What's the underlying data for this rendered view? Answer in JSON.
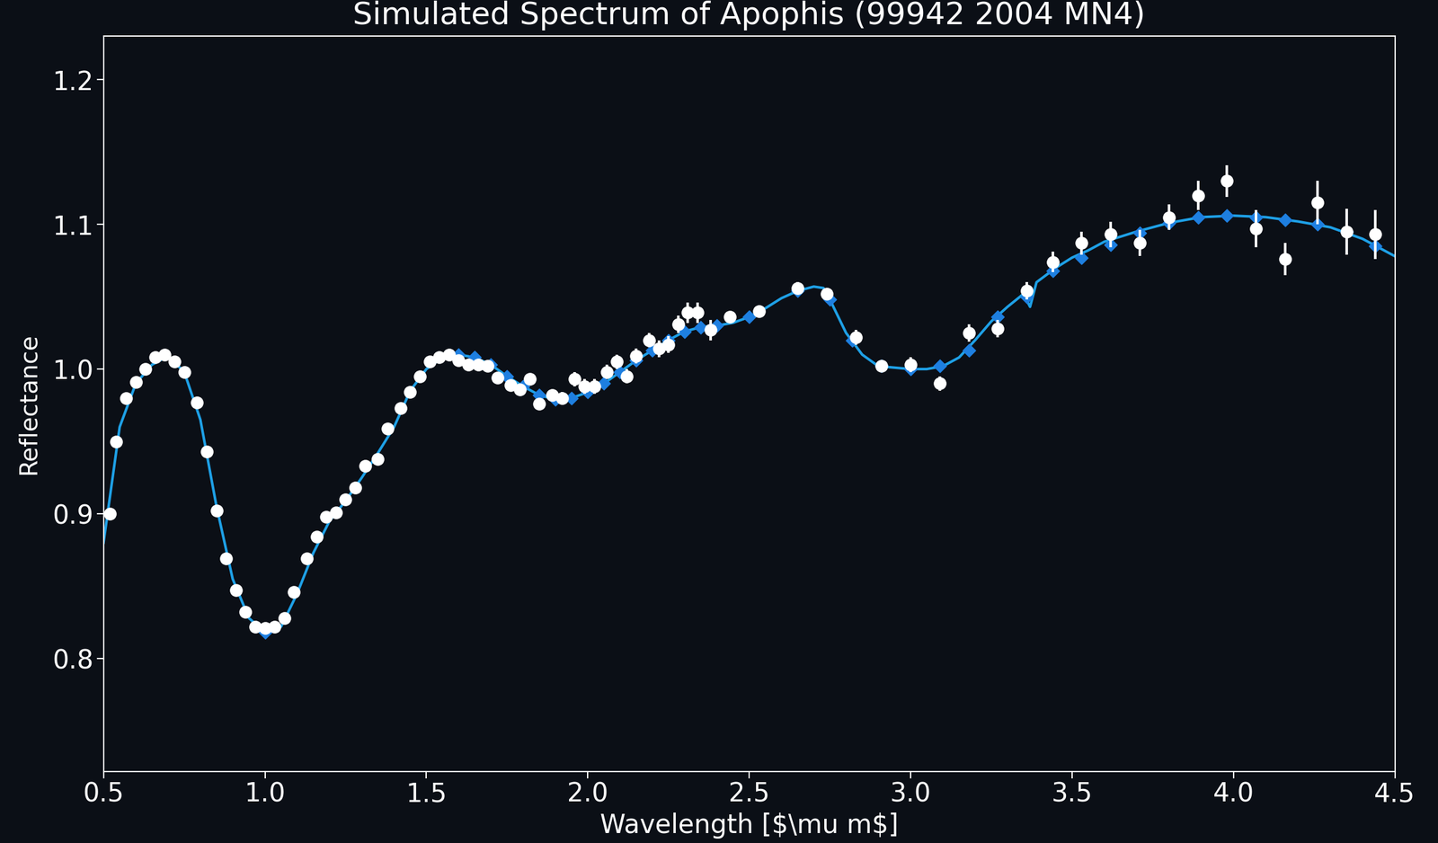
{
  "chart_data": {
    "type": "line",
    "title": "Simulated Spectrum of Apophis (99942 2004 MN4)",
    "x_label": "Wavelength [$\\mu m$]",
    "y_label": "Reflectance",
    "xlim": [
      0.5,
      4.5
    ],
    "ylim": [
      0.722,
      1.23
    ],
    "xticks": [
      0.5,
      1.0,
      1.5,
      2.0,
      2.5,
      3.0,
      3.5,
      4.0,
      4.5
    ],
    "yticks": [
      0.8,
      0.9,
      1.0,
      1.1,
      1.2
    ],
    "grid": false,
    "series": [
      {
        "type": "line",
        "color": "#1ea0e6",
        "line_style": "solid",
        "x": [
          0.5,
          0.55,
          0.6,
          0.65,
          0.7,
          0.75,
          0.8,
          0.85,
          0.9,
          0.95,
          1.0,
          1.05,
          1.1,
          1.15,
          1.2,
          1.25,
          1.3,
          1.35,
          1.4,
          1.45,
          1.5,
          1.55,
          1.6,
          1.65,
          1.7,
          1.75,
          1.8,
          1.85,
          1.9,
          1.95,
          2.0,
          2.05,
          2.1,
          2.15,
          2.2,
          2.25,
          2.3,
          2.35,
          2.4,
          2.45,
          2.5,
          2.55,
          2.6,
          2.65,
          2.7,
          2.73,
          2.75,
          2.8,
          2.85,
          2.9,
          3.0,
          3.05,
          3.1,
          3.15,
          3.2,
          3.25,
          3.3,
          3.35,
          3.37,
          3.39,
          3.45,
          3.5,
          3.55,
          3.6,
          3.7,
          3.8,
          3.9,
          4.0,
          4.1,
          4.2,
          4.3,
          4.4,
          4.5
        ],
        "values": [
          0.88,
          0.96,
          0.99,
          1.003,
          1.009,
          0.998,
          0.965,
          0.905,
          0.855,
          0.828,
          0.818,
          0.822,
          0.845,
          0.873,
          0.895,
          0.909,
          0.925,
          0.942,
          0.96,
          0.985,
          1.0,
          1.008,
          1.01,
          1.008,
          1.003,
          0.995,
          0.988,
          0.982,
          0.979,
          0.98,
          0.984,
          0.99,
          0.998,
          1.006,
          1.013,
          1.02,
          1.026,
          1.029,
          1.03,
          1.032,
          1.036,
          1.042,
          1.049,
          1.054,
          1.057,
          1.056,
          1.048,
          1.025,
          1.01,
          1.002,
          1.0,
          1.0,
          1.002,
          1.008,
          1.02,
          1.033,
          1.043,
          1.052,
          1.043,
          1.06,
          1.07,
          1.077,
          1.082,
          1.088,
          1.095,
          1.101,
          1.105,
          1.106,
          1.105,
          1.102,
          1.098,
          1.09,
          1.078
        ]
      },
      {
        "type": "scatter",
        "color": "#1e7fe0",
        "marker": "diamond",
        "x": [
          1.0,
          1.6,
          1.65,
          1.7,
          1.75,
          1.8,
          1.85,
          1.9,
          1.95,
          2.0,
          2.05,
          2.1,
          2.15,
          2.2,
          2.25,
          2.3,
          2.35,
          2.4,
          2.5,
          2.65,
          2.75,
          2.82,
          2.91,
          3.0,
          3.09,
          3.18,
          3.27,
          3.36,
          3.44,
          3.53,
          3.62,
          3.71,
          3.8,
          3.89,
          3.98,
          4.07,
          4.16,
          4.26,
          4.35,
          4.44
        ],
        "values": [
          0.818,
          1.01,
          1.008,
          1.003,
          0.995,
          0.988,
          0.982,
          0.979,
          0.98,
          0.984,
          0.99,
          0.998,
          1.006,
          1.013,
          1.02,
          1.026,
          1.029,
          1.03,
          1.036,
          1.054,
          1.048,
          1.02,
          1.002,
          1.0,
          1.002,
          1.013,
          1.036,
          1.05,
          1.068,
          1.077,
          1.086,
          1.094,
          1.101,
          1.105,
          1.106,
          1.105,
          1.103,
          1.1,
          1.095,
          1.085
        ]
      },
      {
        "type": "errorbar",
        "color": "#ffffff",
        "marker": "circle",
        "x": [
          0.52,
          0.54,
          0.57,
          0.6,
          0.63,
          0.66,
          0.69,
          0.72,
          0.75,
          0.79,
          0.82,
          0.85,
          0.88,
          0.91,
          0.94,
          0.97,
          1.0,
          1.03,
          1.06,
          1.09,
          1.13,
          1.16,
          1.19,
          1.22,
          1.25,
          1.28,
          1.31,
          1.35,
          1.38,
          1.42,
          1.45,
          1.48,
          1.51,
          1.54,
          1.57,
          1.6,
          1.63,
          1.66,
          1.69,
          1.72,
          1.76,
          1.79,
          1.82,
          1.85,
          1.89,
          1.92,
          1.96,
          1.99,
          2.02,
          2.06,
          2.09,
          2.12,
          2.15,
          2.19,
          2.22,
          2.25,
          2.28,
          2.31,
          2.34,
          2.38,
          2.44,
          2.53,
          2.65,
          2.74,
          2.83,
          2.91,
          3.0,
          3.09,
          3.18,
          3.27,
          3.36,
          3.44,
          3.53,
          3.62,
          3.71,
          3.8,
          3.89,
          3.98,
          4.07,
          4.16,
          4.26,
          4.35,
          4.44
        ],
        "values": [
          0.9,
          0.95,
          0.98,
          0.991,
          1.0,
          1.008,
          1.01,
          1.005,
          0.998,
          0.977,
          0.943,
          0.902,
          0.869,
          0.847,
          0.832,
          0.822,
          0.821,
          0.822,
          0.828,
          0.846,
          0.869,
          0.884,
          0.898,
          0.901,
          0.91,
          0.918,
          0.933,
          0.938,
          0.959,
          0.973,
          0.984,
          0.995,
          1.005,
          1.008,
          1.01,
          1.006,
          1.003,
          1.003,
          1.002,
          0.994,
          0.989,
          0.986,
          0.993,
          0.976,
          0.982,
          0.98,
          0.993,
          0.988,
          0.988,
          0.998,
          1.005,
          0.995,
          1.009,
          1.02,
          1.014,
          1.017,
          1.031,
          1.039,
          1.039,
          1.027,
          1.036,
          1.04,
          1.056,
          1.052,
          1.022,
          1.002,
          1.003,
          0.99,
          1.025,
          1.028,
          1.054,
          1.074,
          1.087,
          1.093,
          1.087,
          1.105,
          1.12,
          1.13,
          1.097,
          1.076,
          1.115,
          1.095,
          1.093
        ],
        "errors": [
          0.002,
          0.002,
          0.002,
          0.002,
          0.002,
          0.002,
          0.002,
          0.002,
          0.002,
          0.002,
          0.002,
          0.002,
          0.002,
          0.002,
          0.002,
          0.002,
          0.002,
          0.002,
          0.002,
          0.002,
          0.002,
          0.002,
          0.002,
          0.002,
          0.002,
          0.002,
          0.002,
          0.002,
          0.002,
          0.002,
          0.002,
          0.002,
          0.002,
          0.002,
          0.002,
          0.002,
          0.002,
          0.002,
          0.002,
          0.002,
          0.003,
          0.003,
          0.003,
          0.004,
          0.004,
          0.004,
          0.005,
          0.005,
          0.005,
          0.005,
          0.005,
          0.005,
          0.005,
          0.005,
          0.006,
          0.006,
          0.006,
          0.007,
          0.007,
          0.007,
          0.004,
          0.004,
          0.004,
          0.004,
          0.005,
          0.004,
          0.005,
          0.005,
          0.006,
          0.006,
          0.006,
          0.007,
          0.008,
          0.009,
          0.009,
          0.009,
          0.01,
          0.011,
          0.013,
          0.011,
          0.015,
          0.016,
          0.017
        ]
      }
    ]
  }
}
